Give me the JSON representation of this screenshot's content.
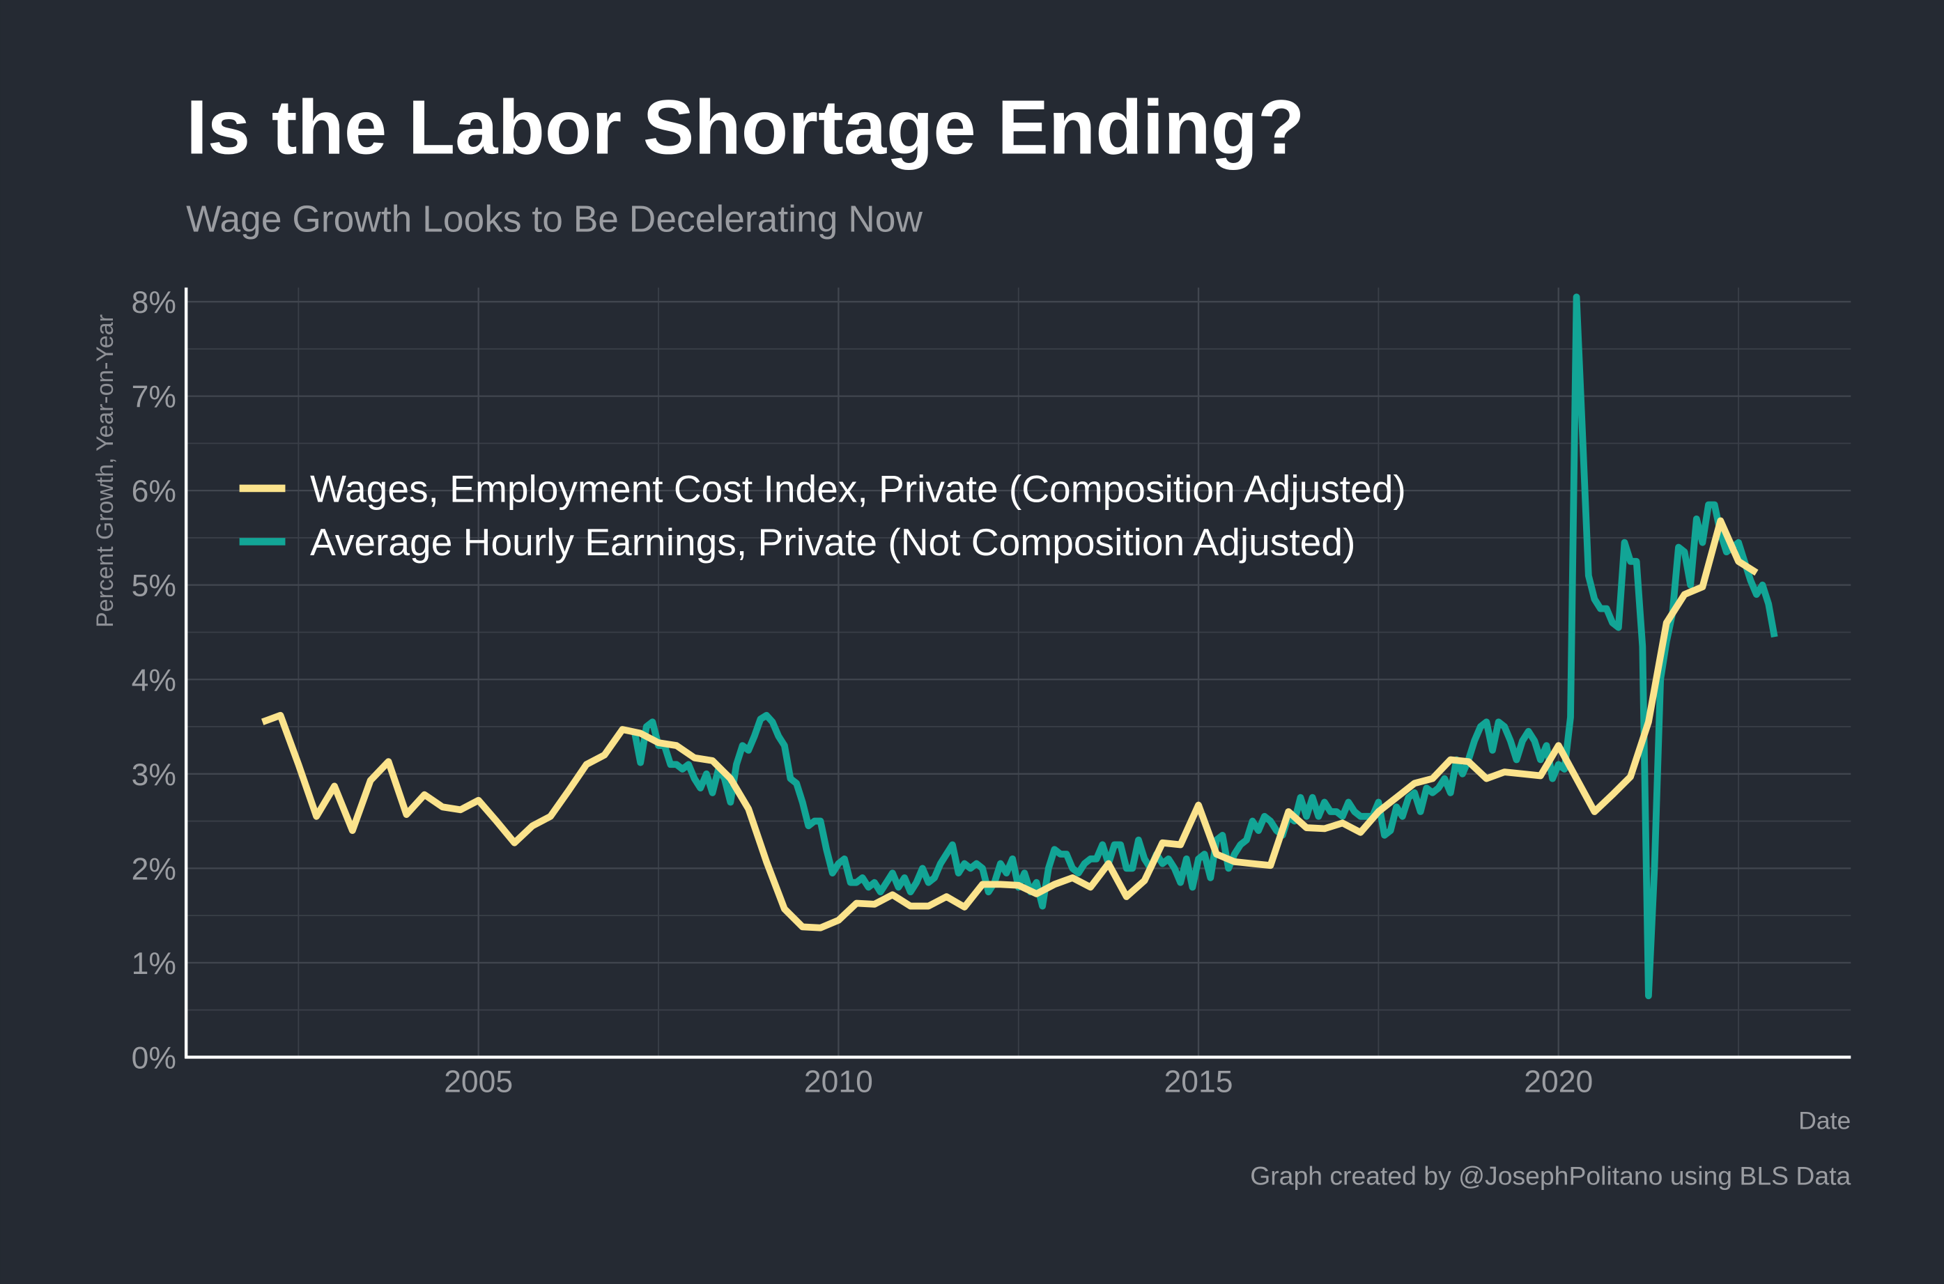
{
  "chart_data": {
    "type": "line",
    "title": "Is the Labor Shortage Ending?",
    "subtitle": "Wage Growth Looks to Be Decelerating Now",
    "y_label": "Percent Growth, Year-on-Year",
    "x_label": "Date",
    "caption": "Graph created by @JosephPolitano using BLS Data",
    "xlim": [
      2000.94,
      2024.06
    ],
    "ylim": [
      0,
      8.15
    ],
    "xticks": [
      2005,
      2010,
      2015,
      2020
    ],
    "x_minor_ticks": [
      2002.5,
      2007.5,
      2012.5,
      2017.5,
      2022.5
    ],
    "yticks": [
      {
        "value": 0,
        "label": "0%"
      },
      {
        "value": 1,
        "label": "1%"
      },
      {
        "value": 2,
        "label": "2%"
      },
      {
        "value": 3,
        "label": "3%"
      },
      {
        "value": 4,
        "label": "4%"
      },
      {
        "value": 5,
        "label": "5%"
      },
      {
        "value": 6,
        "label": "6%"
      },
      {
        "value": 7,
        "label": "7%"
      },
      {
        "value": 8,
        "label": "8%"
      }
    ],
    "y_minor_ticks": [
      0.5,
      1.5,
      2.5,
      3.5,
      4.5,
      5.5,
      6.5,
      7.5
    ],
    "grid": true,
    "legend": "upper-left",
    "series": [
      {
        "name": "Wages, Employment Cost Index, Private (Composition Adjusted)",
        "color": "#fbe38c",
        "x": [
          2002,
          2002.25,
          2002.5,
          2002.75,
          2003,
          2003.25,
          2003.5,
          2003.75,
          2004,
          2004.25,
          2004.5,
          2004.75,
          2005,
          2005.25,
          2005.5,
          2005.75,
          2006,
          2006.25,
          2006.5,
          2006.75,
          2007,
          2007.25,
          2007.5,
          2007.75,
          2008,
          2008.25,
          2008.5,
          2008.75,
          2009,
          2009.25,
          2009.5,
          2009.75,
          2010,
          2010.25,
          2010.5,
          2010.75,
          2011,
          2011.25,
          2011.5,
          2011.75,
          2012,
          2012.25,
          2012.5,
          2012.75,
          2013,
          2013.25,
          2013.5,
          2013.75,
          2014,
          2014.25,
          2014.5,
          2014.75,
          2015,
          2015.25,
          2015.5,
          2015.75,
          2016,
          2016.25,
          2016.5,
          2016.75,
          2017,
          2017.25,
          2017.5,
          2017.75,
          2018,
          2018.25,
          2018.5,
          2018.75,
          2019,
          2019.25,
          2019.5,
          2019.75,
          2020,
          2020.25,
          2020.5,
          2020.75,
          2021,
          2021.25,
          2021.5,
          2021.75,
          2022,
          2022.25,
          2022.5,
          2022.75
        ],
        "values": [
          3.55,
          3.62,
          3.1,
          2.55,
          2.87,
          2.4,
          2.93,
          3.13,
          2.57,
          2.78,
          2.65,
          2.62,
          2.72,
          2.5,
          2.27,
          2.45,
          2.55,
          2.82,
          3.1,
          3.2,
          3.47,
          3.43,
          3.33,
          3.3,
          3.17,
          3.14,
          2.95,
          2.63,
          2.07,
          1.57,
          1.38,
          1.37,
          1.45,
          1.63,
          1.62,
          1.72,
          1.6,
          1.6,
          1.7,
          1.59,
          1.83,
          1.83,
          1.82,
          1.73,
          1.83,
          1.9,
          1.8,
          2.05,
          1.7,
          1.87,
          2.27,
          2.25,
          2.67,
          2.15,
          2.07,
          2.05,
          2.03,
          2.6,
          2.43,
          2.42,
          2.48,
          2.38,
          2.6,
          2.75,
          2.9,
          2.95,
          3.15,
          3.13,
          2.95,
          3.02,
          3.0,
          2.98,
          3.3,
          2.95,
          2.6,
          2.78,
          2.97,
          3.55,
          4.6,
          4.9,
          4.98,
          5.68,
          5.25,
          5.13
        ]
      },
      {
        "name": "Average Hourly Earnings, Private (Not Composition Adjusted)",
        "color": "#12a596",
        "x": [
          2007.167,
          2007.25,
          2007.333,
          2007.417,
          2007.5,
          2007.583,
          2007.667,
          2007.75,
          2007.833,
          2007.917,
          2008,
          2008.083,
          2008.167,
          2008.25,
          2008.333,
          2008.417,
          2008.5,
          2008.583,
          2008.667,
          2008.75,
          2008.833,
          2008.917,
          2009,
          2009.083,
          2009.167,
          2009.25,
          2009.333,
          2009.417,
          2009.5,
          2009.583,
          2009.667,
          2009.75,
          2009.833,
          2009.917,
          2010,
          2010.083,
          2010.167,
          2010.25,
          2010.333,
          2010.417,
          2010.5,
          2010.583,
          2010.667,
          2010.75,
          2010.833,
          2010.917,
          2011,
          2011.083,
          2011.167,
          2011.25,
          2011.333,
          2011.417,
          2011.5,
          2011.583,
          2011.667,
          2011.75,
          2011.833,
          2011.917,
          2012,
          2012.083,
          2012.167,
          2012.25,
          2012.333,
          2012.417,
          2012.5,
          2012.583,
          2012.667,
          2012.75,
          2012.833,
          2012.917,
          2013,
          2013.083,
          2013.167,
          2013.25,
          2013.333,
          2013.417,
          2013.5,
          2013.583,
          2013.667,
          2013.75,
          2013.833,
          2013.917,
          2014,
          2014.083,
          2014.167,
          2014.25,
          2014.333,
          2014.417,
          2014.5,
          2014.583,
          2014.667,
          2014.75,
          2014.833,
          2014.917,
          2015,
          2015.083,
          2015.167,
          2015.25,
          2015.333,
          2015.417,
          2015.5,
          2015.583,
          2015.667,
          2015.75,
          2015.833,
          2015.917,
          2016,
          2016.083,
          2016.167,
          2016.25,
          2016.333,
          2016.417,
          2016.5,
          2016.583,
          2016.667,
          2016.75,
          2016.833,
          2016.917,
          2017,
          2017.083,
          2017.167,
          2017.25,
          2017.333,
          2017.417,
          2017.5,
          2017.583,
          2017.667,
          2017.75,
          2017.833,
          2017.917,
          2018,
          2018.083,
          2018.167,
          2018.25,
          2018.333,
          2018.417,
          2018.5,
          2018.583,
          2018.667,
          2018.75,
          2018.833,
          2018.917,
          2019,
          2019.083,
          2019.167,
          2019.25,
          2019.333,
          2019.417,
          2019.5,
          2019.583,
          2019.667,
          2019.75,
          2019.833,
          2019.917,
          2020,
          2020.083,
          2020.167,
          2020.25,
          2020.333,
          2020.417,
          2020.5,
          2020.583,
          2020.667,
          2020.75,
          2020.833,
          2020.917,
          2021,
          2021.083,
          2021.167,
          2021.25,
          2021.333,
          2021.417,
          2021.5,
          2021.583,
          2021.667,
          2021.75,
          2021.833,
          2021.917,
          2022,
          2022.083,
          2022.167,
          2022.25,
          2022.333,
          2022.417,
          2022.5,
          2022.583,
          2022.667,
          2022.75,
          2022.833,
          2022.917,
          2023
        ],
        "values": [
          3.45,
          3.12,
          3.5,
          3.55,
          3.3,
          3.3,
          3.1,
          3.1,
          3.05,
          3.1,
          2.95,
          2.85,
          3.0,
          2.8,
          3.05,
          2.95,
          2.7,
          3.1,
          3.3,
          3.25,
          3.4,
          3.58,
          3.62,
          3.55,
          3.4,
          3.3,
          2.95,
          2.9,
          2.7,
          2.45,
          2.5,
          2.5,
          2.2,
          1.95,
          2.05,
          2.1,
          1.85,
          1.85,
          1.9,
          1.8,
          1.85,
          1.75,
          1.85,
          1.95,
          1.8,
          1.9,
          1.75,
          1.85,
          2.0,
          1.85,
          1.9,
          2.05,
          2.15,
          2.25,
          1.95,
          2.05,
          2.0,
          2.05,
          2.0,
          1.75,
          1.85,
          2.05,
          1.95,
          2.1,
          1.8,
          1.95,
          1.75,
          1.85,
          1.6,
          2.0,
          2.2,
          2.15,
          2.15,
          2.0,
          1.95,
          2.05,
          2.1,
          2.1,
          2.25,
          2.05,
          2.25,
          2.25,
          2.0,
          2.0,
          2.3,
          2.1,
          2.0,
          2.15,
          2.05,
          2.1,
          2.0,
          1.85,
          2.1,
          1.8,
          2.1,
          2.15,
          1.9,
          2.3,
          2.35,
          2.0,
          2.15,
          2.25,
          2.3,
          2.5,
          2.4,
          2.55,
          2.5,
          2.4,
          2.35,
          2.55,
          2.5,
          2.75,
          2.55,
          2.75,
          2.55,
          2.7,
          2.6,
          2.6,
          2.55,
          2.7,
          2.6,
          2.55,
          2.55,
          2.55,
          2.7,
          2.35,
          2.4,
          2.65,
          2.55,
          2.75,
          2.8,
          2.6,
          2.85,
          2.8,
          2.85,
          2.95,
          2.8,
          3.15,
          3.0,
          3.15,
          3.35,
          3.5,
          3.55,
          3.25,
          3.55,
          3.5,
          3.35,
          3.15,
          3.35,
          3.45,
          3.35,
          3.15,
          3.3,
          2.95,
          3.1,
          3.05,
          3.6,
          8.05,
          6.6,
          5.1,
          4.85,
          4.75,
          4.75,
          4.6,
          4.55,
          5.45,
          5.25,
          5.25,
          4.35,
          0.65,
          2.0,
          4.0,
          4.4,
          4.7,
          5.4,
          5.35,
          5.0,
          5.7,
          5.45,
          5.85,
          5.85,
          5.55,
          5.35,
          5.4,
          5.45,
          5.25,
          5.05,
          4.9,
          5.0,
          4.8,
          4.45
        ]
      }
    ]
  }
}
